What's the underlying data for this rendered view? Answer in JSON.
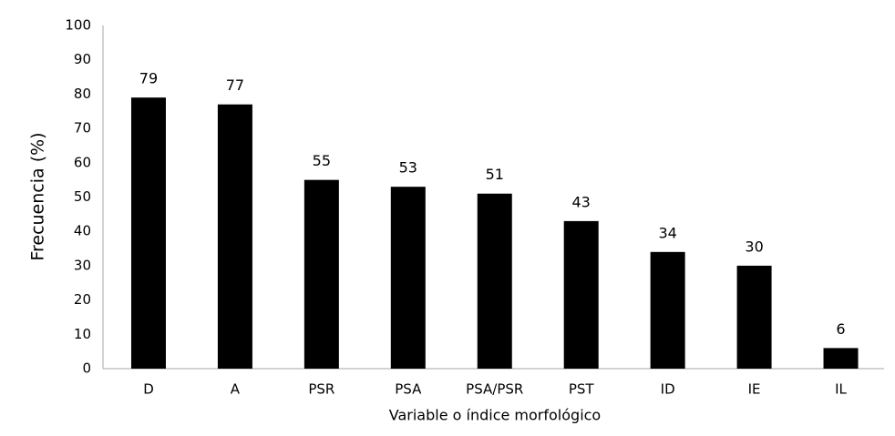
{
  "chart_data": {
    "type": "bar",
    "x_label": "Variable o índice morfológico",
    "y_label": "Frecuencia (%)",
    "categories": [
      "D",
      "A",
      "PSR",
      "PSA",
      "PSA/PSR",
      "PST",
      "ID",
      "IE",
      "IL"
    ],
    "values": [
      79,
      77,
      55,
      53,
      51,
      43,
      34,
      30,
      6
    ],
    "color": "#000000",
    "ylim": [
      0,
      100
    ],
    "yticks": [
      0,
      10,
      20,
      30,
      40,
      50,
      60,
      70,
      80,
      90,
      100
    ],
    "grid": false
  }
}
